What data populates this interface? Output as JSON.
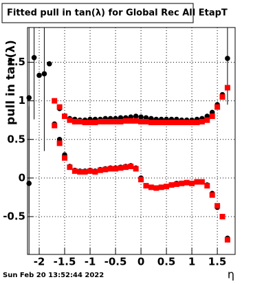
{
  "chart_data": {
    "type": "scatter",
    "title": "Fitted pull in tan(λ) for Global Rec All EtapT",
    "y_label": "pull in tan(λ)",
    "x_label": "η",
    "footer": "Sun Feb 20 13:52:44 2022",
    "grid": true,
    "xlim": [
      -2.23,
      1.85
    ],
    "ylim": [
      -0.99,
      1.95
    ],
    "xticks": [
      -2,
      -1.5,
      -1,
      -0.5,
      0,
      0.5,
      1,
      1.5
    ],
    "yticks": [
      -0.5,
      0,
      0.5,
      1,
      1.5
    ],
    "x": [
      -2.2,
      -2.1,
      -2.0,
      -1.9,
      -1.8,
      -1.7,
      -1.6,
      -1.5,
      -1.4,
      -1.3,
      -1.2,
      -1.1,
      -1.0,
      -0.9,
      -0.8,
      -0.7,
      -0.6,
      -0.5,
      -0.4,
      -0.3,
      -0.2,
      -0.1,
      0.0,
      0.1,
      0.2,
      0.3,
      0.4,
      0.5,
      0.6,
      0.7,
      0.8,
      0.9,
      1.0,
      1.1,
      1.2,
      1.3,
      1.4,
      1.5,
      1.6,
      1.7
    ],
    "series": [
      {
        "color": "#000000",
        "marker": "circle",
        "values": [
          1.04,
          1.56,
          1.33,
          1.35,
          1.48,
          1.0,
          0.9,
          0.8,
          0.77,
          0.76,
          0.75,
          0.75,
          0.76,
          0.76,
          0.76,
          0.77,
          0.77,
          0.77,
          0.78,
          0.78,
          0.79,
          0.8,
          0.79,
          0.78,
          0.77,
          0.76,
          0.76,
          0.76,
          0.76,
          0.76,
          0.75,
          0.75,
          0.75,
          0.76,
          0.77,
          0.8,
          0.85,
          0.95,
          1.08,
          1.55
        ],
        "errors": [
          1.5,
          0.8,
          null,
          1.0,
          null,
          null,
          null,
          null,
          null,
          null,
          null,
          null,
          null,
          null,
          null,
          null,
          null,
          null,
          null,
          null,
          null,
          null,
          null,
          null,
          null,
          null,
          null,
          null,
          null,
          null,
          null,
          null,
          null,
          null,
          null,
          null,
          null,
          null,
          null,
          0.6
        ]
      },
      {
        "color": "#000000",
        "marker": "circle",
        "values": [
          -0.07,
          null,
          null,
          null,
          null,
          0.7,
          0.5,
          0.3,
          0.15,
          0.1,
          0.09,
          0.09,
          0.1,
          0.09,
          0.11,
          0.12,
          0.13,
          0.13,
          0.14,
          0.15,
          0.16,
          0.13,
          0.0,
          -0.1,
          -0.12,
          -0.13,
          -0.12,
          -0.11,
          -0.09,
          -0.07,
          -0.07,
          -0.06,
          -0.07,
          -0.05,
          -0.05,
          -0.09,
          -0.2,
          -0.38,
          -0.5,
          -0.78
        ],
        "errors": [
          1.0,
          null,
          null,
          null,
          null,
          null,
          null,
          null,
          null,
          null,
          null,
          null,
          null,
          null,
          null,
          null,
          null,
          null,
          null,
          null,
          null,
          null,
          null,
          null,
          null,
          null,
          null,
          null,
          null,
          null,
          null,
          null,
          null,
          null,
          null,
          null,
          null,
          null,
          null,
          null
        ]
      },
      {
        "color": "#ff0000",
        "marker": "square",
        "values": [
          null,
          null,
          null,
          null,
          null,
          1.0,
          0.92,
          0.8,
          0.75,
          0.73,
          0.73,
          0.72,
          0.72,
          0.72,
          0.73,
          0.73,
          0.73,
          0.73,
          0.73,
          0.74,
          0.74,
          0.74,
          0.73,
          0.73,
          0.72,
          0.72,
          0.72,
          0.72,
          0.72,
          0.72,
          0.72,
          0.72,
          0.72,
          0.72,
          0.73,
          0.75,
          0.8,
          0.92,
          1.05,
          1.17
        ]
      },
      {
        "color": "#ff0000",
        "marker": "square",
        "values": [
          null,
          null,
          null,
          null,
          null,
          0.68,
          0.45,
          0.26,
          0.14,
          0.09,
          0.08,
          0.08,
          0.09,
          0.08,
          0.1,
          0.11,
          0.12,
          0.12,
          0.13,
          0.14,
          0.15,
          0.12,
          -0.02,
          -0.1,
          -0.12,
          -0.13,
          -0.12,
          -0.11,
          -0.09,
          -0.08,
          -0.07,
          -0.06,
          -0.07,
          -0.05,
          -0.05,
          -0.1,
          -0.22,
          -0.36,
          -0.5,
          -0.8
        ]
      }
    ]
  }
}
